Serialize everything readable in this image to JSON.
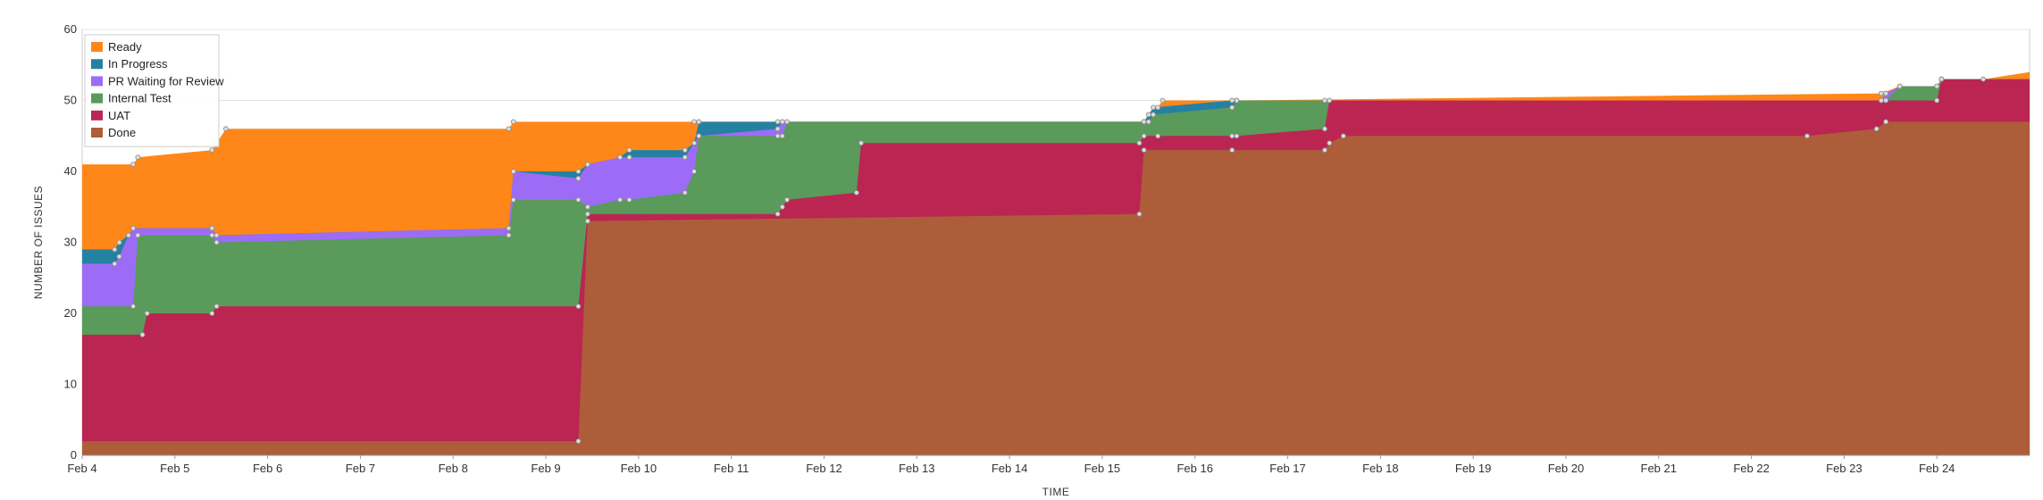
{
  "chart_data": {
    "type": "area",
    "stacked": true,
    "xlabel": "TIME",
    "ylabel": "NUMBER OF ISSUES",
    "ylim": [
      0,
      60
    ],
    "yticks": [
      0,
      10,
      20,
      30,
      40,
      50,
      60
    ],
    "xlim": [
      0,
      21.0
    ],
    "xticks": [
      "Feb 4",
      "Feb 5",
      "Feb 6",
      "Feb 7",
      "Feb 8",
      "Feb 9",
      "Feb 10",
      "Feb 11",
      "Feb 12",
      "Feb 13",
      "Feb 14",
      "Feb 15",
      "Feb 16",
      "Feb 17",
      "Feb 18",
      "Feb 19",
      "Feb 20",
      "Feb 21",
      "Feb 22",
      "Feb 23",
      "Feb 24"
    ],
    "grid": true,
    "legend_position": "top-left",
    "series": [
      {
        "name": "Ready",
        "color": "#ff8719",
        "points": [
          [
            0,
            41
          ],
          [
            0.55,
            41
          ],
          [
            0.6,
            42
          ],
          [
            1.4,
            43
          ],
          [
            1.45,
            44
          ],
          [
            1.55,
            46
          ],
          [
            4.6,
            46
          ],
          [
            4.65,
            47
          ],
          [
            6.6,
            47
          ],
          [
            6.65,
            47
          ],
          [
            11.45,
            47
          ],
          [
            11.5,
            48
          ],
          [
            11.6,
            49
          ],
          [
            11.65,
            50
          ],
          [
            12.4,
            50
          ],
          [
            12.45,
            50
          ],
          [
            19.4,
            51
          ],
          [
            19.6,
            52
          ],
          [
            20.0,
            52
          ],
          [
            20.05,
            53
          ],
          [
            20.5,
            53
          ],
          [
            21.0,
            54
          ]
        ]
      },
      {
        "name": "In Progress",
        "color": "#2581a1",
        "points": [
          [
            0,
            29
          ],
          [
            0.35,
            29
          ],
          [
            0.4,
            30
          ],
          [
            0.5,
            31
          ],
          [
            0.55,
            32
          ],
          [
            1.4,
            32
          ],
          [
            1.45,
            31
          ],
          [
            4.6,
            32
          ],
          [
            4.65,
            40
          ],
          [
            5.35,
            40
          ],
          [
            5.45,
            41
          ],
          [
            5.8,
            42
          ],
          [
            5.9,
            43
          ],
          [
            6.5,
            43
          ],
          [
            6.6,
            44
          ],
          [
            6.65,
            47
          ],
          [
            7.5,
            47
          ],
          [
            7.55,
            47
          ],
          [
            11.45,
            47
          ],
          [
            11.5,
            48
          ],
          [
            11.55,
            49
          ],
          [
            12.4,
            50
          ],
          [
            12.45,
            50
          ],
          [
            19.4,
            50
          ],
          [
            19.45,
            51
          ],
          [
            19.6,
            52
          ],
          [
            20.0,
            52
          ],
          [
            20.05,
            53
          ],
          [
            21.0,
            53
          ]
        ]
      },
      {
        "name": "PR Waiting for Review",
        "color": "#9c6cf6",
        "points": [
          [
            0,
            27
          ],
          [
            0.35,
            27
          ],
          [
            0.4,
            28
          ],
          [
            0.5,
            31
          ],
          [
            0.55,
            32
          ],
          [
            1.4,
            32
          ],
          [
            1.45,
            31
          ],
          [
            4.6,
            32
          ],
          [
            4.65,
            40
          ],
          [
            5.35,
            39
          ],
          [
            5.45,
            41
          ],
          [
            5.8,
            42
          ],
          [
            5.9,
            42
          ],
          [
            6.5,
            42
          ],
          [
            6.6,
            44
          ],
          [
            6.65,
            45
          ],
          [
            7.5,
            46
          ],
          [
            7.55,
            47
          ],
          [
            11.45,
            47
          ],
          [
            11.5,
            47
          ],
          [
            11.55,
            48
          ],
          [
            12.4,
            49
          ],
          [
            12.45,
            50
          ],
          [
            19.4,
            50
          ],
          [
            19.45,
            51
          ],
          [
            19.6,
            52
          ],
          [
            20.0,
            52
          ],
          [
            20.05,
            53
          ],
          [
            21.0,
            53
          ]
        ]
      },
      {
        "name": "Internal Test",
        "color": "#5a9a5b",
        "points": [
          [
            0,
            21
          ],
          [
            0.55,
            21
          ],
          [
            0.6,
            31
          ],
          [
            1.4,
            31
          ],
          [
            1.45,
            30
          ],
          [
            4.6,
            31
          ],
          [
            4.65,
            36
          ],
          [
            5.35,
            36
          ],
          [
            5.45,
            35
          ],
          [
            5.8,
            36
          ],
          [
            5.9,
            36
          ],
          [
            6.5,
            37
          ],
          [
            6.6,
            40
          ],
          [
            6.65,
            45
          ],
          [
            7.5,
            45
          ],
          [
            7.55,
            45
          ],
          [
            7.6,
            47
          ],
          [
            11.45,
            47
          ],
          [
            11.5,
            47
          ],
          [
            11.55,
            48
          ],
          [
            12.4,
            49
          ],
          [
            12.45,
            50
          ],
          [
            13.4,
            50
          ],
          [
            13.45,
            50
          ],
          [
            19.4,
            50
          ],
          [
            19.45,
            50
          ],
          [
            19.6,
            52
          ],
          [
            20.0,
            52
          ],
          [
            20.05,
            53
          ],
          [
            21.0,
            53
          ]
        ]
      },
      {
        "name": "UAT",
        "color": "#bb2552",
        "points": [
          [
            0,
            17
          ],
          [
            0.65,
            17
          ],
          [
            0.7,
            20
          ],
          [
            1.4,
            20
          ],
          [
            1.45,
            21
          ],
          [
            5.35,
            21
          ],
          [
            5.45,
            34
          ],
          [
            7.5,
            34
          ],
          [
            7.55,
            35
          ],
          [
            7.6,
            36
          ],
          [
            8.35,
            37
          ],
          [
            8.4,
            44
          ],
          [
            11.4,
            44
          ],
          [
            11.45,
            45
          ],
          [
            11.6,
            45
          ],
          [
            12.4,
            45
          ],
          [
            12.45,
            45
          ],
          [
            13.4,
            46
          ],
          [
            13.45,
            50
          ],
          [
            19.4,
            50
          ],
          [
            19.45,
            50
          ],
          [
            20.0,
            50
          ],
          [
            20.05,
            53
          ],
          [
            21.0,
            53
          ]
        ]
      },
      {
        "name": "Done",
        "color": "#ad5d3a",
        "points": [
          [
            0,
            2
          ],
          [
            5.35,
            2
          ],
          [
            5.45,
            33
          ],
          [
            11.4,
            34
          ],
          [
            11.45,
            43
          ],
          [
            12.4,
            43
          ],
          [
            13.4,
            43
          ],
          [
            13.45,
            44
          ],
          [
            13.6,
            45
          ],
          [
            18.6,
            45
          ],
          [
            19.35,
            46
          ],
          [
            19.45,
            47
          ],
          [
            21.0,
            47
          ]
        ]
      }
    ]
  }
}
